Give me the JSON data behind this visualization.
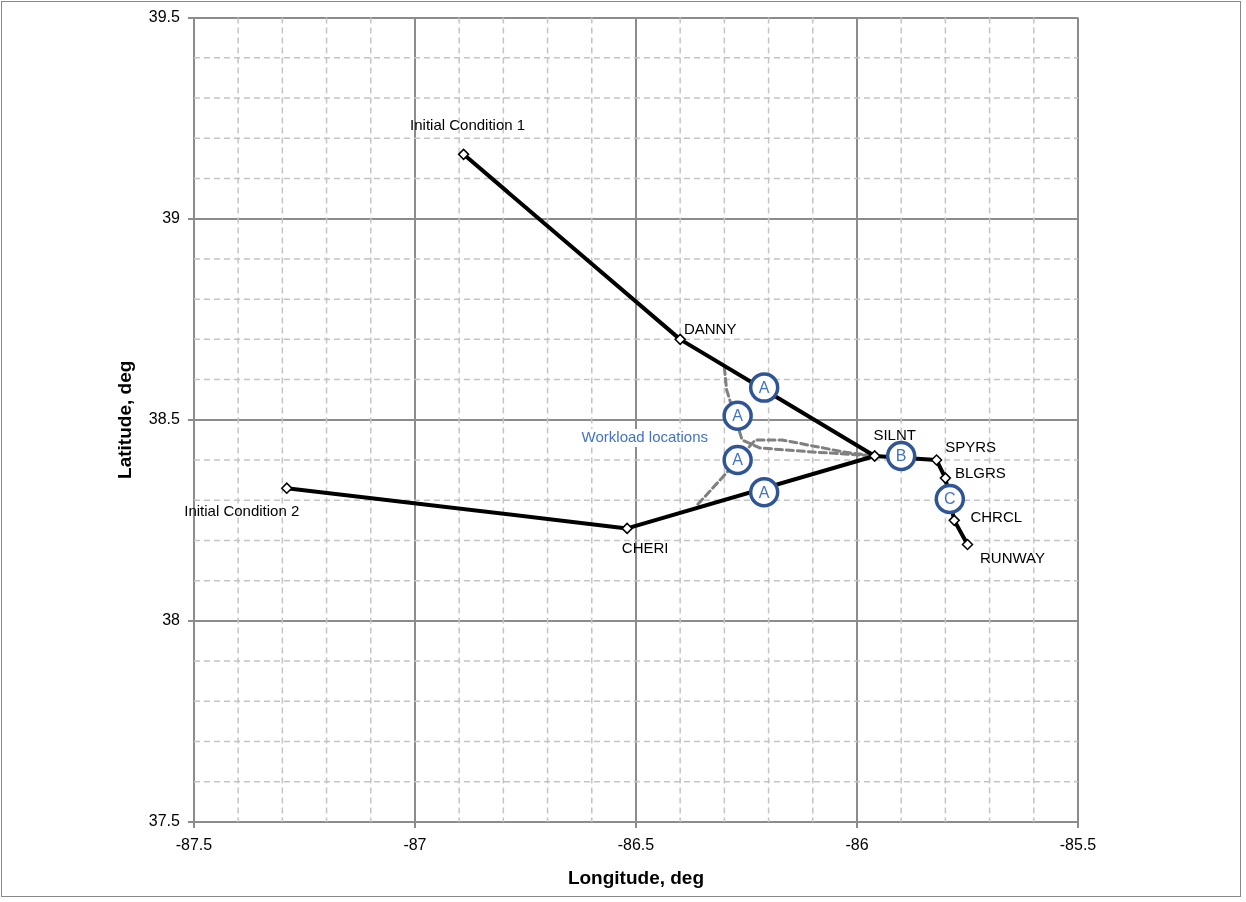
{
  "chart_data": {
    "type": "line",
    "xlabel": "Longitude, deg",
    "ylabel": "Latitude, deg",
    "xlim": [
      -87.5,
      -85.5
    ],
    "xticks": [
      -87.5,
      {
        "value": -87.4,
        "label": null
      },
      {
        "value": -87.3,
        "label": null
      },
      {
        "value": -87.2,
        "label": null
      },
      {
        "value": -87.1,
        "label": null
      },
      -87,
      {
        "value": -86.9,
        "label": null
      },
      {
        "value": -86.8,
        "label": null
      },
      {
        "value": -86.7,
        "label": null
      },
      {
        "value": -86.6,
        "label": null
      },
      -86.5,
      {
        "value": -86.4,
        "label": null
      },
      {
        "value": -86.3,
        "label": null
      },
      {
        "value": -86.2,
        "label": null
      },
      {
        "value": -86.1,
        "label": null
      },
      -86,
      {
        "value": -85.9,
        "label": null
      },
      {
        "value": -85.8,
        "label": null
      },
      {
        "value": -85.7,
        "label": null
      },
      {
        "value": -85.6,
        "label": null
      },
      -85.5
    ],
    "ylim": [
      37.5,
      39.5
    ],
    "yticks": [
      37.5,
      {
        "value": 37.6,
        "label": null
      },
      {
        "value": 37.7,
        "label": null
      },
      {
        "value": 37.8,
        "label": null
      },
      {
        "value": 37.9,
        "label": null
      },
      38,
      {
        "value": 38.1,
        "label": null
      },
      {
        "value": 38.2,
        "label": null
      },
      {
        "value": 38.3,
        "label": null
      },
      {
        "value": 38.4,
        "label": null
      },
      38.5,
      {
        "value": 38.6,
        "label": null
      },
      {
        "value": 38.7,
        "label": null
      },
      {
        "value": 38.8,
        "label": null
      },
      {
        "value": 38.9,
        "label": null
      },
      39,
      {
        "value": 39.1,
        "label": null
      },
      {
        "value": 39.2,
        "label": null
      },
      {
        "value": 39.3,
        "label": null
      },
      {
        "value": 39.4,
        "label": null
      },
      39.5
    ],
    "grid": true,
    "legend": false,
    "marker": "diamond",
    "line_style": "solid",
    "series": [
      {
        "color": "#000000",
        "x": [
          -86.89,
          -86.4,
          -85.96,
          -85.82,
          -85.8,
          -85.78,
          -85.75
        ],
        "values": [
          39.16,
          38.7,
          38.41,
          38.4,
          38.355,
          38.25,
          38.19
        ]
      },
      {
        "color": "#000000",
        "x": [
          -87.29,
          -86.52,
          -85.96
        ],
        "values": [
          38.33,
          38.23,
          38.41
        ]
      },
      {
        "color": "#808080",
        "marker": "none",
        "line_style": "dashed",
        "x": [
          -86.3,
          -86.295,
          -86.26,
          -86.22,
          -86.1,
          -85.96
        ],
        "values": [
          38.63,
          38.575,
          38.45,
          38.43,
          38.42,
          38.41
        ]
      },
      {
        "color": "#808080",
        "marker": "none",
        "line_style": "dashed",
        "x": [
          -86.36,
          -86.31,
          -86.23,
          -86.17,
          -86.03,
          -85.96
        ],
        "values": [
          38.29,
          38.35,
          38.45,
          38.45,
          38.42,
          38.41
        ]
      }
    ],
    "annotations": [
      {
        "text": "Initial Condition 1",
        "x": -86.89,
        "y": 39.16
      },
      {
        "text": "DANNY",
        "x": -86.4,
        "y": 38.7
      },
      {
        "text": "SILNT",
        "x": -85.96,
        "y": 38.41
      },
      {
        "text": "SPYRS",
        "x": -85.82,
        "y": 38.4
      },
      {
        "text": "BLGRS",
        "x": -85.8,
        "y": 38.355
      },
      {
        "text": "CHRCL",
        "x": -85.78,
        "y": 38.25
      },
      {
        "text": "RUNWAY",
        "x": -85.75,
        "y": 38.19
      },
      {
        "text": "Initial Condition 2",
        "x": -87.29,
        "y": 38.33
      },
      {
        "text": "CHERI",
        "x": -86.52,
        "y": 38.23
      },
      {
        "text": "A",
        "x": -86.21,
        "y": 38.58
      },
      {
        "text": "A",
        "x": -86.27,
        "y": 38.51
      },
      {
        "text": "A",
        "x": -86.27,
        "y": 38.4
      },
      {
        "text": "A",
        "x": -86.21,
        "y": 38.32
      },
      {
        "text": "B",
        "x": -85.9,
        "y": 38.41
      },
      {
        "text": "C",
        "x": -85.79,
        "y": 38.303
      },
      "Workload locations"
    ]
  }
}
